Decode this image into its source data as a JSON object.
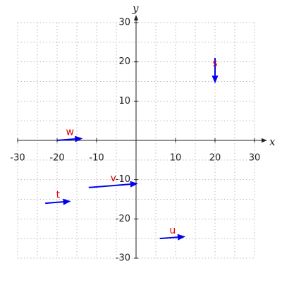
{
  "chart_data": {
    "type": "vector",
    "x_label": "x",
    "y_label": "y",
    "xlim": [
      -30,
      30
    ],
    "ylim": [
      -30,
      30
    ],
    "xticks": [
      -30,
      -20,
      -10,
      10,
      20,
      30
    ],
    "yticks": [
      -30,
      -20,
      -10,
      10,
      20,
      30
    ],
    "grid_x": [
      -30,
      -25,
      -20,
      -15,
      -10,
      -5,
      0,
      5,
      10,
      15,
      20,
      25,
      30
    ],
    "grid_y": [
      -30,
      -25,
      -20,
      -15,
      -10,
      -5,
      0,
      5,
      10,
      15,
      20,
      25,
      30
    ],
    "grid": true,
    "color": "#0000ee",
    "label_color": "#e00000",
    "vectors": [
      {
        "name": "s",
        "x0": 20,
        "y0": 21,
        "x1": 20,
        "y1": 14.5
      },
      {
        "name": "w",
        "x0": -20,
        "y0": 0,
        "x1": -13.5,
        "y1": 0.5
      },
      {
        "name": "v",
        "x0": -12,
        "y0": -12,
        "x1": 0.5,
        "y1": -11
      },
      {
        "name": "t",
        "x0": -23,
        "y0": -16,
        "x1": -16.5,
        "y1": -15.5
      },
      {
        "name": "u",
        "x0": 6,
        "y0": -25,
        "x1": 12.5,
        "y1": -24.5
      }
    ]
  }
}
